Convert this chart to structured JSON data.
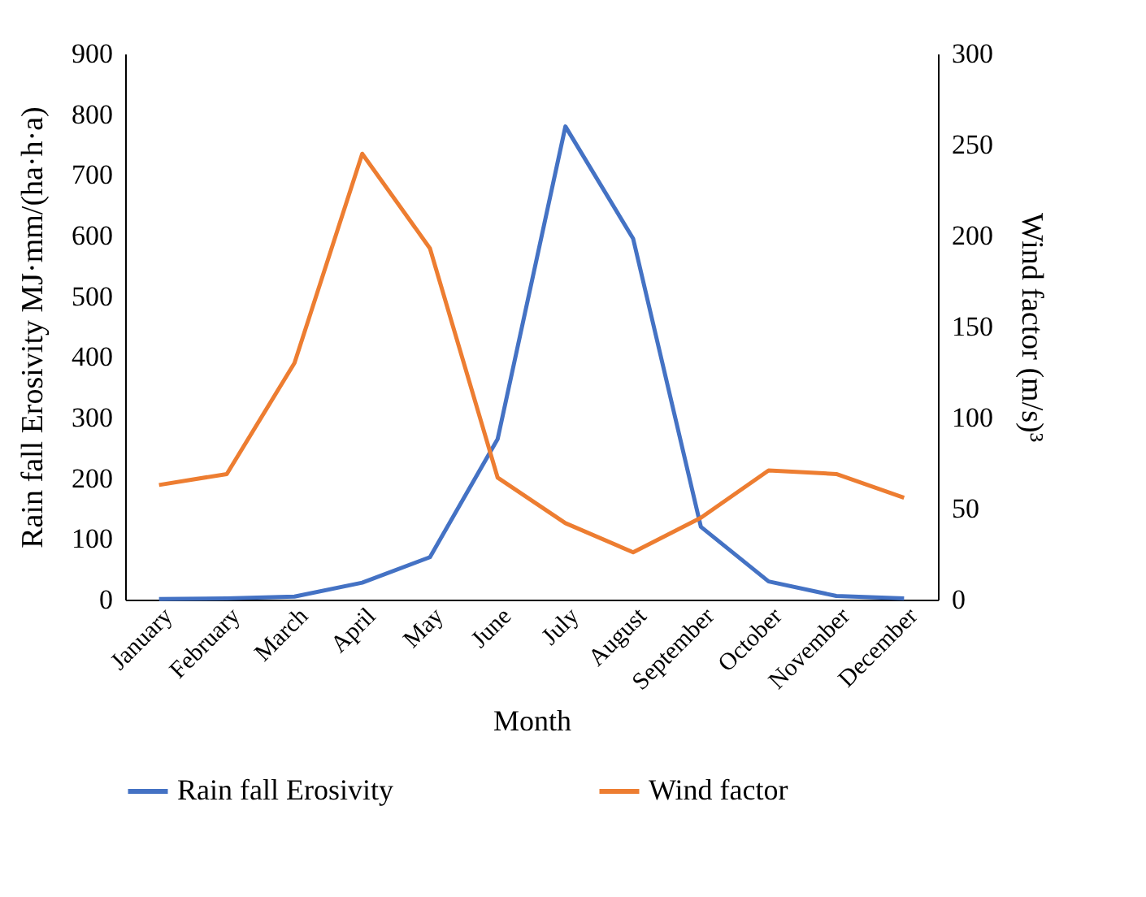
{
  "chart_data": {
    "type": "line",
    "xlabel": "Month",
    "ylabel": "Rain fall Erosivity MJ·mm/(ha·h·a)",
    "y2label": "Wind factor  (m/s)³",
    "categories": [
      "January",
      "February",
      "March",
      "April",
      "May",
      "June",
      "July",
      "August",
      "September",
      "October",
      "November",
      "December"
    ],
    "series": [
      {
        "name": "Rain fall Erosivity",
        "color": "#4472c4",
        "values": [
          1,
          2,
          5,
          28,
          70,
          265,
          780,
          595,
          120,
          30,
          6,
          2
        ]
      },
      {
        "name": "Wind factor",
        "color": "#ed7d31",
        "axis": "y2",
        "values": [
          63,
          69,
          130,
          245,
          193,
          67,
          42,
          26,
          45,
          71,
          69,
          56
        ]
      }
    ],
    "ylim": [
      0,
      900
    ],
    "yticks": [
      0,
      100,
      200,
      300,
      400,
      500,
      600,
      700,
      800,
      900
    ],
    "y2lim": [
      0,
      300
    ],
    "y2ticks": [
      0,
      50,
      100,
      150,
      200,
      250,
      300
    ],
    "legend": "bottom",
    "grid": false,
    "marker": "none",
    "line_style": "solid"
  }
}
